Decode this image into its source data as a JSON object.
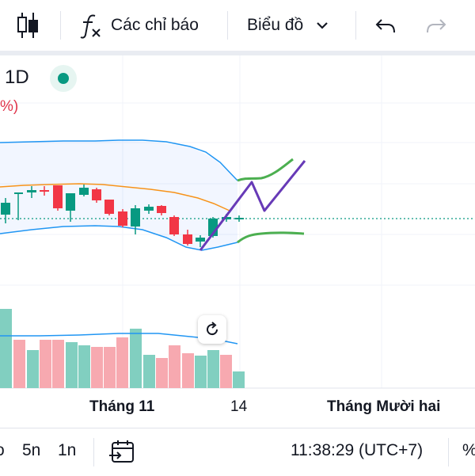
{
  "toolbar": {
    "indicators_label": "Các chỉ báo",
    "chart_type_label": "Biểu đồ"
  },
  "legend": {
    "interval": "1D",
    "change_pct": "%)"
  },
  "time_axis": {
    "labels": [
      "Tháng 11",
      "14",
      "Tháng Mười hai"
    ]
  },
  "bottom_bar": {
    "partial_left": "o",
    "range_5d": "5n",
    "range_1d": "1n",
    "clock": "11:38:29 (UTC+7)",
    "percent": "%"
  },
  "colors": {
    "up": "#089981",
    "down": "#f23645",
    "bollinger": "#2962ff",
    "basis": "#f7931a",
    "drawing": "#673ab7",
    "forecast": "#4caf50"
  }
}
